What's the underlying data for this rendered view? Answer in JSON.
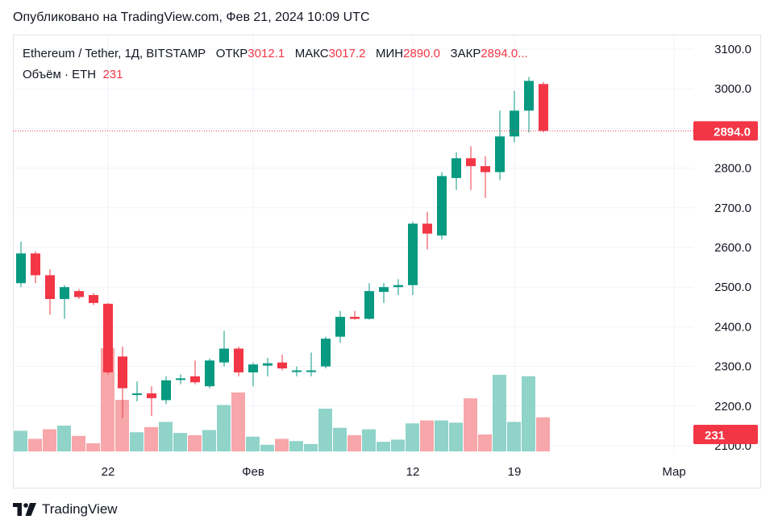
{
  "header": {
    "published": "Опубликовано на TradingView.com, Фев 21, 2024 10:09 UTC"
  },
  "legend": {
    "symbol": "Ethereum / Tether, 1Д, BITSTAMP",
    "open_label": "ОТКР",
    "open_value": "3012.1",
    "high_label": "МАКС",
    "high_value": "3017.2",
    "low_label": "МИН",
    "low_value": "2890.0",
    "close_label": "ЗАКР",
    "close_value": "2894.0...",
    "volume_label": "Объём · ETH",
    "volume_value": "231"
  },
  "brand": {
    "name": "TradingView",
    "icon": "tradingview-logo-icon"
  },
  "colors": {
    "up": "#089981",
    "down": "#f23645",
    "up_vol": "#8fd3c9",
    "down_vol": "#f7a6a9",
    "grid": "#f0f3fa"
  },
  "chart_data": {
    "type": "candlestick",
    "title": "Ethereum / Tether, 1Д, BITSTAMP",
    "ylim": [
      2085,
      3110
    ],
    "yticks": [
      "3100.0",
      "3000.0",
      "2900.0",
      "2800.0",
      "2700.0",
      "2600.0",
      "2500.0",
      "2400.0",
      "2300.0",
      "2200.0",
      "2100.0"
    ],
    "ytick_values": [
      3100,
      3000,
      2900,
      2800,
      2700,
      2600,
      2500,
      2400,
      2300,
      2200,
      2100
    ],
    "xticks": [
      {
        "label": "22",
        "index": 6
      },
      {
        "label": "Фев",
        "index": 16
      },
      {
        "label": "12",
        "index": 27
      },
      {
        "label": "19",
        "index": 34
      },
      {
        "label": "Мар",
        "index": 45
      }
    ],
    "last_price_label": "2894.0",
    "last_price": 2894.0,
    "last_volume_label": "231",
    "volume_max": 700,
    "candles": [
      {
        "o": 2510,
        "h": 2615,
        "l": 2500,
        "c": 2585,
        "v": 140
      },
      {
        "o": 2585,
        "h": 2590,
        "l": 2510,
        "c": 2530,
        "v": 85
      },
      {
        "o": 2530,
        "h": 2545,
        "l": 2430,
        "c": 2470,
        "v": 150
      },
      {
        "o": 2470,
        "h": 2505,
        "l": 2420,
        "c": 2500,
        "v": 175
      },
      {
        "o": 2490,
        "h": 2495,
        "l": 2470,
        "c": 2475,
        "v": 105
      },
      {
        "o": 2480,
        "h": 2485,
        "l": 2455,
        "c": 2460,
        "v": 55
      },
      {
        "o": 2458,
        "h": 2460,
        "l": 2280,
        "c": 2285,
        "v": 700
      },
      {
        "o": 2325,
        "h": 2350,
        "l": 2170,
        "c": 2245,
        "v": 350
      },
      {
        "o": 2232,
        "h": 2262,
        "l": 2212,
        "c": 2232,
        "v": 130
      },
      {
        "o": 2232,
        "h": 2250,
        "l": 2175,
        "c": 2220,
        "v": 165
      },
      {
        "o": 2215,
        "h": 2275,
        "l": 2205,
        "c": 2265,
        "v": 200
      },
      {
        "o": 2270,
        "h": 2280,
        "l": 2255,
        "c": 2270,
        "v": 125
      },
      {
        "o": 2275,
        "h": 2315,
        "l": 2255,
        "c": 2260,
        "v": 110
      },
      {
        "o": 2250,
        "h": 2320,
        "l": 2245,
        "c": 2315,
        "v": 145
      },
      {
        "o": 2310,
        "h": 2390,
        "l": 2300,
        "c": 2345,
        "v": 315
      },
      {
        "o": 2345,
        "h": 2350,
        "l": 2275,
        "c": 2285,
        "v": 400
      },
      {
        "o": 2285,
        "h": 2310,
        "l": 2250,
        "c": 2305,
        "v": 100
      },
      {
        "o": 2302,
        "h": 2322,
        "l": 2275,
        "c": 2308,
        "v": 45
      },
      {
        "o": 2310,
        "h": 2330,
        "l": 2290,
        "c": 2295,
        "v": 85
      },
      {
        "o": 2290,
        "h": 2300,
        "l": 2275,
        "c": 2290,
        "v": 70
      },
      {
        "o": 2288,
        "h": 2335,
        "l": 2275,
        "c": 2290,
        "v": 50
      },
      {
        "o": 2300,
        "h": 2375,
        "l": 2295,
        "c": 2370,
        "v": 290
      },
      {
        "o": 2375,
        "h": 2440,
        "l": 2360,
        "c": 2425,
        "v": 160
      },
      {
        "o": 2425,
        "h": 2440,
        "l": 2418,
        "c": 2420,
        "v": 110
      },
      {
        "o": 2420,
        "h": 2510,
        "l": 2418,
        "c": 2490,
        "v": 150
      },
      {
        "o": 2488,
        "h": 2510,
        "l": 2460,
        "c": 2500,
        "v": 65
      },
      {
        "o": 2500,
        "h": 2520,
        "l": 2480,
        "c": 2505,
        "v": 80
      },
      {
        "o": 2505,
        "h": 2665,
        "l": 2480,
        "c": 2660,
        "v": 190
      },
      {
        "o": 2660,
        "h": 2690,
        "l": 2595,
        "c": 2635,
        "v": 210
      },
      {
        "o": 2630,
        "h": 2790,
        "l": 2620,
        "c": 2780,
        "v": 210
      },
      {
        "o": 2775,
        "h": 2840,
        "l": 2745,
        "c": 2825,
        "v": 195
      },
      {
        "o": 2825,
        "h": 2855,
        "l": 2745,
        "c": 2805,
        "v": 360
      },
      {
        "o": 2805,
        "h": 2830,
        "l": 2725,
        "c": 2790,
        "v": 115
      },
      {
        "o": 2790,
        "h": 2945,
        "l": 2770,
        "c": 2880,
        "v": 520
      },
      {
        "o": 2880,
        "h": 2995,
        "l": 2865,
        "c": 2945,
        "v": 200
      },
      {
        "o": 2945,
        "h": 3030,
        "l": 2890,
        "c": 3020,
        "v": 510
      },
      {
        "o": 3012.1,
        "h": 3017.2,
        "l": 2890.0,
        "c": 2894.0,
        "v": 231
      }
    ]
  }
}
